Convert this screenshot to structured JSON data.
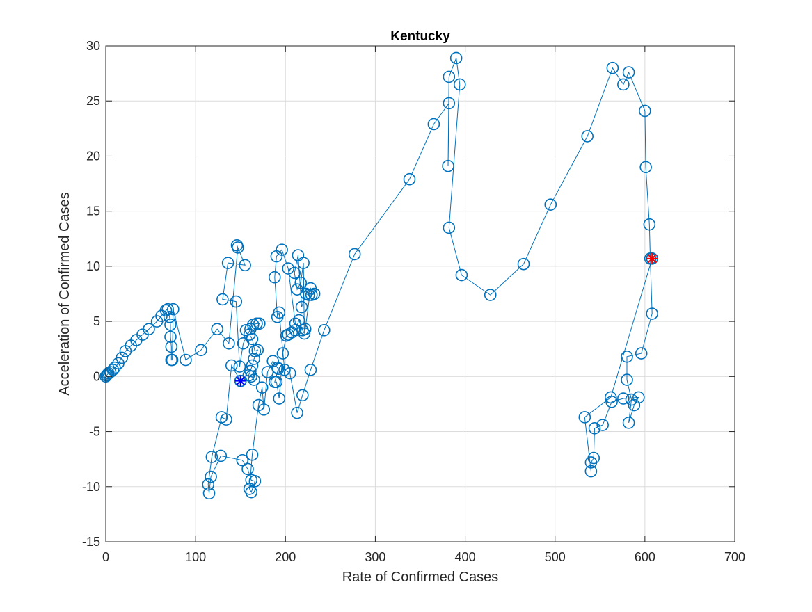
{
  "chart_data": {
    "type": "scatter",
    "title": "Kentucky",
    "xlabel": "Rate of Confirmed Cases",
    "ylabel": "Acceleration of Confirmed Cases",
    "xlim": [
      0,
      700
    ],
    "ylim": [
      -15,
      30
    ],
    "xticks": [
      0,
      100,
      200,
      300,
      400,
      500,
      600,
      700
    ],
    "yticks": [
      -15,
      -10,
      -5,
      0,
      5,
      10,
      15,
      20,
      25,
      30
    ],
    "grid": true,
    "box": true,
    "colors": {
      "series": "#0072BD",
      "start_marker": "#0000FF",
      "end_marker": "#FF0000",
      "axes": "#262626",
      "grid": "#dcdcdc"
    },
    "series": [
      {
        "marker": "circle",
        "line": "solid",
        "x": [
          0,
          1,
          2,
          3,
          5,
          8,
          10,
          14,
          18,
          22,
          28,
          34,
          41,
          48,
          57,
          62,
          67,
          69,
          71,
          72,
          72,
          73,
          73,
          74,
          75,
          89,
          106,
          124,
          137,
          147,
          146,
          155,
          136,
          130,
          145,
          149,
          153,
          161,
          156,
          164,
          168,
          171,
          160,
          163,
          166,
          169,
          165,
          163,
          161,
          159,
          162,
          165,
          150,
          140,
          134,
          129,
          118,
          114,
          115,
          117,
          128,
          152,
          158,
          162,
          166,
          162,
          160,
          163,
          170,
          174,
          176,
          180,
          186,
          191,
          192,
          188,
          190,
          193,
          197,
          201,
          203,
          207,
          211,
          215,
          219,
          221,
          220,
          217,
          213,
          210,
          214,
          218,
          223,
          226,
          229,
          232,
          228,
          222,
          211,
          203,
          196,
          190,
          188,
          191,
          193,
          199,
          205,
          213,
          219,
          228,
          243,
          277,
          338,
          365,
          382,
          381,
          382,
          390,
          394,
          382,
          396,
          428,
          465,
          495,
          536,
          564,
          576,
          582,
          600,
          601,
          605,
          606,
          608,
          596,
          580,
          580,
          585,
          582,
          588,
          593,
          576,
          563,
          553,
          544,
          543,
          540,
          540,
          533,
          562,
          608
        ],
        "y": [
          0,
          0.1,
          0.2,
          0.3,
          0.4,
          0.6,
          0.8,
          1.2,
          1.7,
          2.3,
          2.8,
          3.3,
          3.8,
          4.3,
          5.0,
          5.5,
          6.0,
          6.1,
          5.4,
          4.7,
          3.6,
          2.7,
          1.5,
          1.5,
          6.1,
          1.5,
          2.4,
          4.3,
          3.0,
          11.7,
          11.9,
          10.1,
          10.3,
          7.0,
          6.8,
          0.9,
          3.0,
          4.3,
          4.2,
          4.7,
          4.8,
          4.8,
          3.8,
          3.4,
          2.3,
          2.4,
          1.6,
          1.0,
          0.5,
          0.1,
          0.0,
          -0.3,
          -0.4,
          1.0,
          -3.9,
          -3.7,
          -7.3,
          -9.8,
          -10.6,
          -9.1,
          -7.2,
          -7.6,
          -8.4,
          -9.4,
          -9.5,
          -10.5,
          -10.2,
          -7.1,
          -2.6,
          -1.0,
          -3.0,
          0.4,
          1.4,
          0.8,
          0.7,
          -0.5,
          -0.5,
          -2.0,
          2.1,
          3.7,
          3.8,
          4.0,
          4.2,
          5.1,
          4.2,
          3.9,
          10.3,
          8.5,
          7.9,
          9.4,
          11.0,
          6.3,
          7.5,
          7.4,
          7.4,
          7.5,
          8.0,
          4.3,
          4.8,
          9.8,
          11.5,
          10.9,
          9.0,
          5.4,
          5.8,
          0.6,
          0.3,
          -3.3,
          -1.7,
          0.6,
          4.2,
          11.1,
          17.9,
          22.9,
          24.8,
          19.1,
          27.2,
          28.9,
          26.5,
          13.5,
          9.2,
          7.4,
          10.2,
          15.6,
          21.8,
          28.0,
          26.5,
          27.6,
          24.1,
          19.0,
          13.8,
          10.7,
          5.7,
          2.1,
          1.8,
          -0.3,
          -2.1,
          -4.2,
          -2.6,
          -1.9,
          -2.0,
          -2.3,
          -4.4,
          -4.7,
          -7.4,
          -7.8,
          -8.6,
          -3.7,
          -1.9,
          10.7
        ]
      }
    ],
    "start_point": {
      "x": 150,
      "y": -0.4,
      "marker": "asterisk"
    },
    "end_point": {
      "x": 608,
      "y": 10.7,
      "marker": "asterisk"
    }
  }
}
